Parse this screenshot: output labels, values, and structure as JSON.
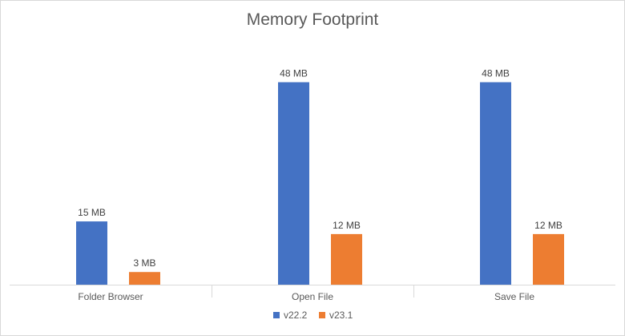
{
  "chart_data": {
    "type": "bar",
    "title": "Memory Footprint",
    "categories": [
      "Folder Browser",
      "Open File",
      "Save File"
    ],
    "series": [
      {
        "name": "v22.2",
        "color": "#4472c4",
        "values": [
          15,
          48,
          48
        ],
        "labels": [
          "15 MB",
          "48 MB",
          "48 MB"
        ]
      },
      {
        "name": "v23.1",
        "color": "#ed7d31",
        "values": [
          3,
          12,
          12
        ],
        "labels": [
          "3 MB",
          "12 MB",
          "12 MB"
        ]
      }
    ],
    "ylim": [
      0,
      50
    ],
    "grid": false,
    "legend_position": "bottom"
  }
}
